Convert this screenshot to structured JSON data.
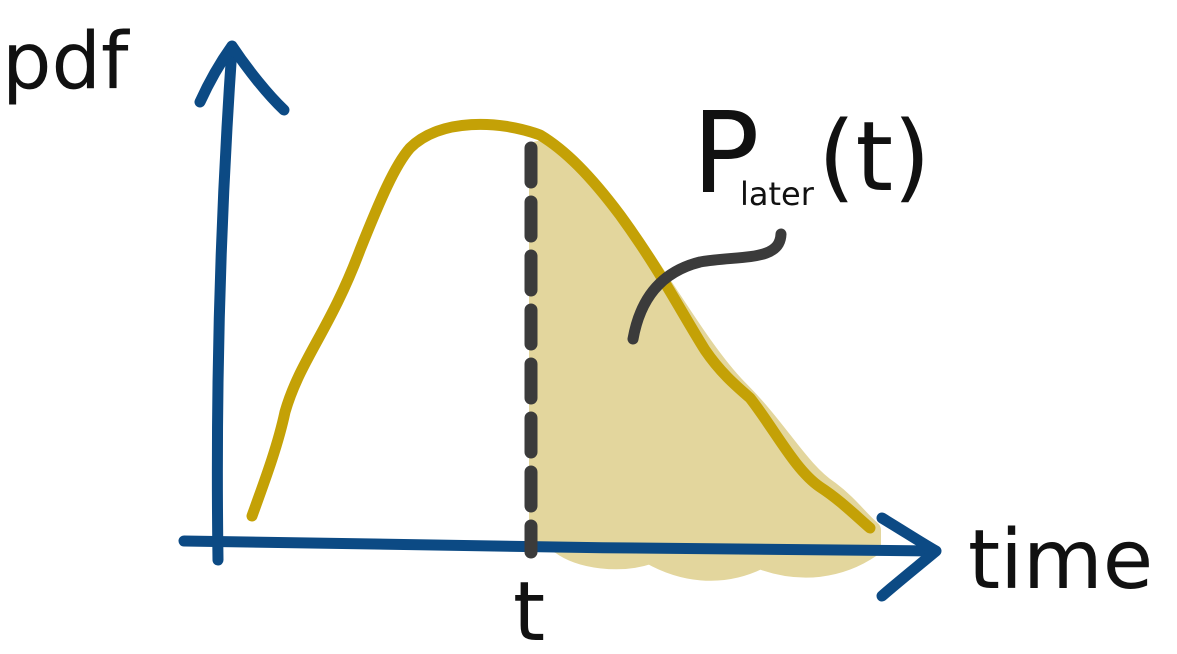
{
  "labels": {
    "y_axis": "pdf",
    "x_axis": "time",
    "t_marker": "t",
    "annotation_main": "P",
    "annotation_subscript": "later",
    "annotation_arg": "(t)"
  },
  "colors": {
    "axis": "#0c4a84",
    "curve": "#c4a106",
    "shade": "#e3d69d",
    "dashed_line": "#3b3b3b",
    "pointer": "#3b3b3b",
    "text": "#111111",
    "background": "#ffffff"
  }
}
